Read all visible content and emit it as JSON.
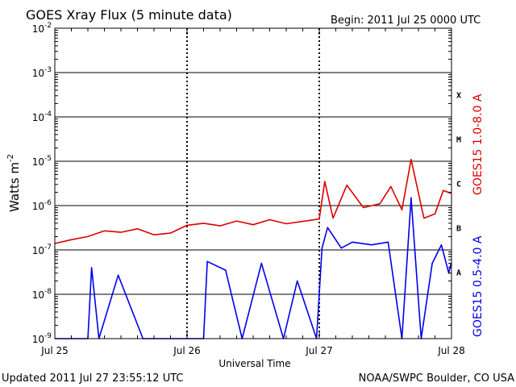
{
  "header": {
    "title": "GOES Xray Flux (5 minute data)",
    "begin": "Begin:  2011 Jul 25 0000 UTC"
  },
  "footer": {
    "updated": "Updated 2011 Jul 27 23:55:12 UTC",
    "credit": "NOAA/SWPC Boulder, CO USA"
  },
  "chart_data": {
    "type": "line",
    "title": "GOES Xray Flux (5 minute data)",
    "xlabel": "Universal Time",
    "ylabel": "Watts m",
    "ylabel_superscript": "-2",
    "yscale": "log",
    "ylim": [
      1e-09,
      0.01
    ],
    "xlim": [
      "2011-07-25 00:00",
      "2011-07-28 00:00"
    ],
    "y_ticks": [
      "10^-2",
      "10^-3",
      "10^-4",
      "10^-5",
      "10^-6",
      "10^-7",
      "10^-8",
      "10^-9"
    ],
    "x_ticks": [
      "Jul 25",
      "Jul 26",
      "Jul 27",
      "Jul 28"
    ],
    "flare_classes": [
      "X",
      "M",
      "C",
      "B",
      "A"
    ],
    "colors": {
      "long": "#dd0000",
      "short": "#0000ee",
      "axes": "#000000"
    },
    "series": [
      {
        "name": "GOES15 1.0-8.0 A",
        "color": "#dd0000",
        "x": [
          "2011-07-25 00:00",
          "2011-07-25 03:00",
          "2011-07-25 06:00",
          "2011-07-25 09:00",
          "2011-07-25 12:00",
          "2011-07-25 15:00",
          "2011-07-25 18:00",
          "2011-07-25 21:00",
          "2011-07-26 00:00",
          "2011-07-26 03:00",
          "2011-07-26 06:00",
          "2011-07-26 09:00",
          "2011-07-26 12:00",
          "2011-07-26 15:00",
          "2011-07-26 18:00",
          "2011-07-26 21:00",
          "2011-07-27 00:00",
          "2011-07-27 01:00",
          "2011-07-27 02:30",
          "2011-07-27 05:00",
          "2011-07-27 08:00",
          "2011-07-27 11:00",
          "2011-07-27 13:00",
          "2011-07-27 15:00",
          "2011-07-27 16:40",
          "2011-07-27 19:00",
          "2011-07-27 21:00",
          "2011-07-27 22:30",
          "2011-07-27 23:55"
        ],
        "y": [
          1.4e-07,
          1.7e-07,
          2e-07,
          2.7e-07,
          2.5e-07,
          3e-07,
          2.2e-07,
          2.4e-07,
          3.6e-07,
          4e-07,
          3.5e-07,
          4.5e-07,
          3.7e-07,
          4.8e-07,
          3.9e-07,
          4.4e-07,
          5e-07,
          3.5e-06,
          5.2e-07,
          2.9e-06,
          9e-07,
          1.1e-06,
          2.7e-06,
          8e-07,
          1.1e-05,
          5.2e-07,
          6.5e-07,
          2.2e-06,
          1.9e-06
        ]
      },
      {
        "name": "GOES15 0.5-4.0 A",
        "color": "#0000ee",
        "x": [
          "2011-07-25 00:00",
          "2011-07-25 06:00",
          "2011-07-25 06:40",
          "2011-07-25 08:00",
          "2011-07-25 11:30",
          "2011-07-25 16:00",
          "2011-07-25 20:00",
          "2011-07-26 03:00",
          "2011-07-26 03:40",
          "2011-07-26 07:00",
          "2011-07-26 10:00",
          "2011-07-26 13:30",
          "2011-07-26 17:30",
          "2011-07-26 20:00",
          "2011-07-26 23:30",
          "2011-07-27 00:30",
          "2011-07-27 01:30",
          "2011-07-27 04:00",
          "2011-07-27 06:00",
          "2011-07-27 09:30",
          "2011-07-27 12:30",
          "2011-07-27 15:00",
          "2011-07-27 16:40",
          "2011-07-27 18:30",
          "2011-07-27 20:30",
          "2011-07-27 22:10",
          "2011-07-27 23:30",
          "2011-07-27 23:55"
        ],
        "y": [
          1e-09,
          1e-09,
          4e-08,
          1e-09,
          2.7e-08,
          1e-09,
          1e-09,
          1e-09,
          5.5e-08,
          3.5e-08,
          1e-09,
          5e-08,
          1e-09,
          2e-08,
          1e-09,
          1.1e-07,
          3.2e-07,
          1.1e-07,
          1.5e-07,
          1.3e-07,
          1.5e-07,
          1e-09,
          1.5e-06,
          1e-09,
          5e-08,
          1.3e-07,
          3e-08,
          5e-08
        ]
      }
    ]
  }
}
